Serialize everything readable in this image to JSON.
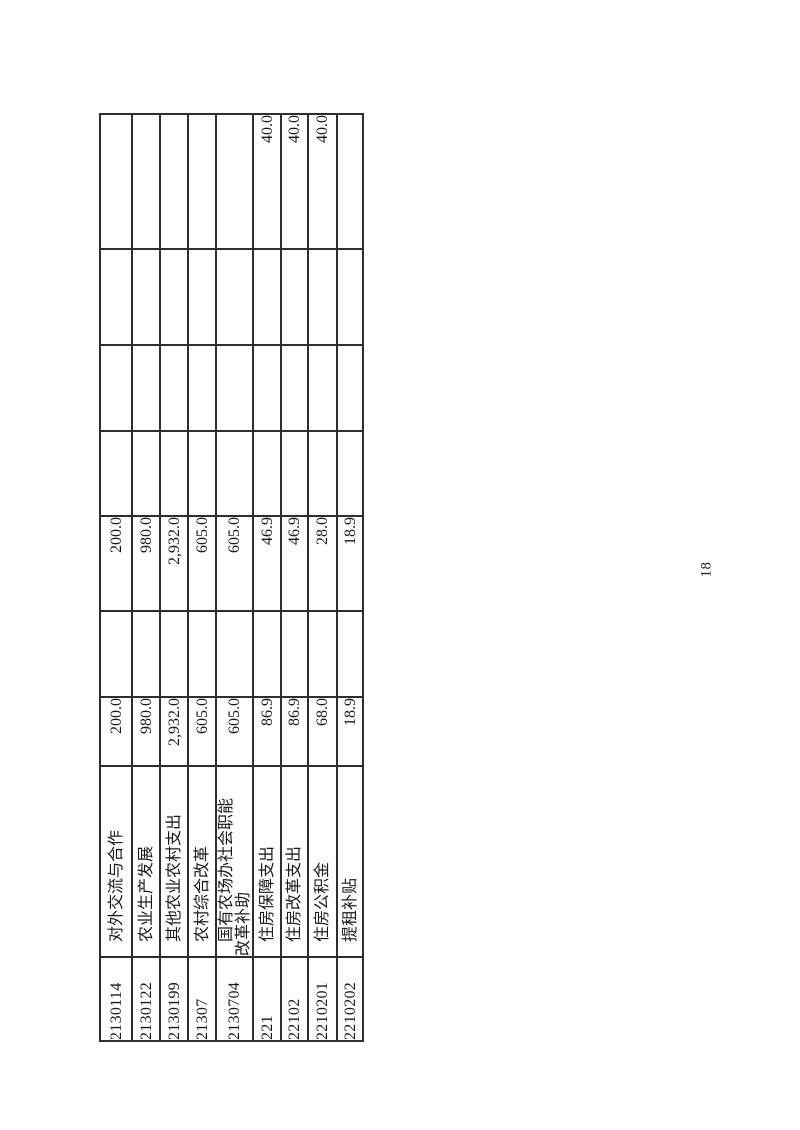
{
  "page_number": "18",
  "table": {
    "rows": [
      {
        "code": "2130114",
        "label": "对外交流与合作",
        "values": [
          "200.0",
          "",
          "200.0",
          "",
          "",
          "",
          ""
        ]
      },
      {
        "code": "2130122",
        "label": "农业生产发展",
        "values": [
          "980.0",
          "",
          "980.0",
          "",
          "",
          "",
          ""
        ]
      },
      {
        "code": "2130199",
        "label": "其他农业农村支出",
        "values": [
          "2,932.0",
          "",
          "2,932.0",
          "",
          "",
          "",
          ""
        ]
      },
      {
        "code": "21307",
        "label": "农村综合改革",
        "values": [
          "605.0",
          "",
          "605.0",
          "",
          "",
          "",
          ""
        ]
      },
      {
        "code": "2130704",
        "label": "国有农场办社会职能\n改革补助",
        "values": [
          "605.0",
          "",
          "605.0",
          "",
          "",
          "",
          ""
        ]
      },
      {
        "code": "221",
        "label": "住房保障支出",
        "values": [
          "86.9",
          "",
          "46.9",
          "",
          "",
          "",
          "40.0"
        ]
      },
      {
        "code": "22102",
        "label": "住房改革支出",
        "values": [
          "86.9",
          "",
          "46.9",
          "",
          "",
          "",
          "40.0"
        ]
      },
      {
        "code": "2210201",
        "label": "住房公积金",
        "values": [
          "68.0",
          "",
          "28.0",
          "",
          "",
          "",
          "40.0"
        ]
      },
      {
        "code": "2210202",
        "label": "提租补贴",
        "values": [
          "18.9",
          "",
          "18.9",
          "",
          "",
          "",
          ""
        ]
      }
    ]
  }
}
